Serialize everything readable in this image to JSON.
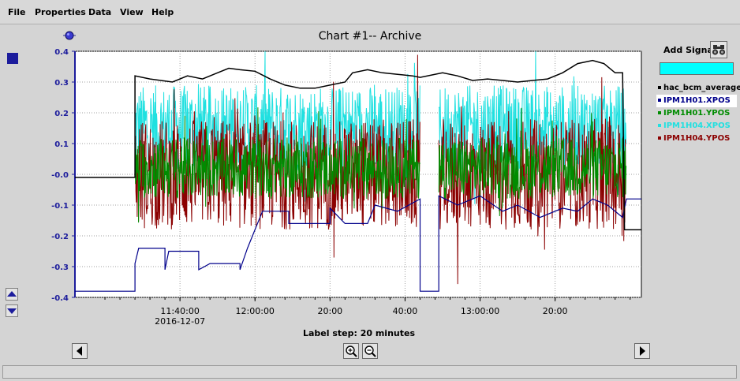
{
  "menu": [
    "File",
    "Properties",
    "Data",
    "View",
    "Help"
  ],
  "chart_title": "Chart #1-- Archive",
  "add_signal_label": "Add Signal",
  "signal_input_value": "",
  "label_step": "Label step: 20 minutes",
  "legend": [
    {
      "name": "hac_bcm_average",
      "color": "#000000"
    },
    {
      "name": "IPM1H01.XPOS",
      "color": "#00008b"
    },
    {
      "name": "IPM1H01.YPOS",
      "color": "#008c00"
    },
    {
      "name": "IPM1H04.XPOS",
      "color": "#20e0e0"
    },
    {
      "name": "IPM1H04.YPOS",
      "color": "#8b0000"
    }
  ],
  "selected_legend_index": 1,
  "icons": {
    "chart_menu": "ball-icon",
    "side_selector": "square-icon",
    "scroll_up": "triangle-up-icon",
    "scroll_down": "triangle-down-icon",
    "scroll_left": "triangle-left-icon",
    "scroll_right": "triangle-right-icon",
    "zoom_in": "zoom-in-icon",
    "zoom_out": "zoom-out-icon",
    "find": "binoculars-icon"
  },
  "chart_data": {
    "type": "line",
    "title": "Chart #1-- Archive",
    "xlabel": "",
    "ylabel": "",
    "ylim": [
      -0.4,
      0.4
    ],
    "y_ticks": [
      0.4,
      0.3,
      0.2,
      0.1,
      0.0,
      -0.1,
      -0.2,
      -0.3,
      -0.4
    ],
    "y_tick_labels": [
      "0.4",
      "0.3",
      "0.2",
      "0.1",
      "-0.0",
      "-0.1",
      "-0.2",
      "-0.3",
      "-0.4"
    ],
    "x_tick_labels": [
      {
        "line1": "11:40:00",
        "line2": "2016-12-07"
      },
      {
        "line1": "12:00:00",
        "line2": ""
      },
      {
        "line1": "20:00",
        "line2": ""
      },
      {
        "line1": "40:00",
        "line2": ""
      },
      {
        "line1": "13:00:00",
        "line2": ""
      },
      {
        "line1": "20:00",
        "line2": ""
      }
    ],
    "x_time": {
      "start_minute": 0,
      "end_minute": 143,
      "tick_minutes": [
        20,
        40,
        60,
        80,
        100,
        120
      ]
    },
    "grid": true,
    "legend_position": "right",
    "gaps": [
      [
        85,
        89
      ]
    ],
    "series": [
      {
        "name": "hac_bcm_average",
        "color": "#000000",
        "points": [
          [
            -8,
            -0.01
          ],
          [
            8,
            -0.01
          ],
          [
            8,
            0.32
          ],
          [
            12,
            0.31
          ],
          [
            18,
            0.3
          ],
          [
            22,
            0.32
          ],
          [
            26,
            0.31
          ],
          [
            30,
            0.33
          ],
          [
            33,
            0.345
          ],
          [
            36,
            0.34
          ],
          [
            40,
            0.335
          ],
          [
            44,
            0.31
          ],
          [
            48,
            0.29
          ],
          [
            52,
            0.28
          ],
          [
            56,
            0.28
          ],
          [
            60,
            0.29
          ],
          [
            64,
            0.3
          ],
          [
            66,
            0.33
          ],
          [
            70,
            0.34
          ],
          [
            74,
            0.33
          ],
          [
            78,
            0.325
          ],
          [
            82,
            0.32
          ],
          [
            84,
            0.315
          ],
          [
            90,
            0.33
          ],
          [
            94,
            0.32
          ],
          [
            98,
            0.305
          ],
          [
            102,
            0.31
          ],
          [
            106,
            0.305
          ],
          [
            110,
            0.3
          ],
          [
            114,
            0.305
          ],
          [
            118,
            0.31
          ],
          [
            122,
            0.33
          ],
          [
            126,
            0.36
          ],
          [
            130,
            0.37
          ],
          [
            133,
            0.36
          ],
          [
            136,
            0.33
          ],
          [
            138,
            0.33
          ],
          [
            138.5,
            -0.18
          ],
          [
            143,
            -0.18
          ]
        ]
      },
      {
        "name": "IPM1H01.XPOS",
        "color": "#00008b",
        "points": [
          [
            -8,
            -0.38
          ],
          [
            8,
            -0.38
          ],
          [
            8,
            -0.29
          ],
          [
            9,
            -0.24
          ],
          [
            16,
            -0.24
          ],
          [
            16,
            -0.31
          ],
          [
            17,
            -0.25
          ],
          [
            25,
            -0.25
          ],
          [
            25,
            -0.31
          ],
          [
            28,
            -0.29
          ],
          [
            36,
            -0.29
          ],
          [
            36,
            -0.31
          ],
          [
            38,
            -0.24
          ],
          [
            42,
            -0.12
          ],
          [
            49,
            -0.12
          ],
          [
            49,
            -0.16
          ],
          [
            60,
            -0.16
          ],
          [
            60,
            -0.11
          ],
          [
            64,
            -0.16
          ],
          [
            70,
            -0.16
          ],
          [
            72,
            -0.1
          ],
          [
            78,
            -0.12
          ],
          [
            84,
            -0.08
          ],
          [
            84,
            -0.38
          ],
          [
            89,
            -0.38
          ],
          [
            89,
            -0.07
          ],
          [
            94,
            -0.1
          ],
          [
            100,
            -0.07
          ],
          [
            106,
            -0.12
          ],
          [
            110,
            -0.1
          ],
          [
            116,
            -0.14
          ],
          [
            122,
            -0.11
          ],
          [
            126,
            -0.12
          ],
          [
            130,
            -0.08
          ],
          [
            134,
            -0.1
          ],
          [
            138,
            -0.14
          ],
          [
            139,
            -0.08
          ],
          [
            143,
            -0.08
          ]
        ]
      },
      {
        "name": "IPM1H01.YPOS",
        "color": "#008c00",
        "center": 0.02,
        "amplitude": 0.1,
        "segments": [
          [
            8,
            84
          ],
          [
            89,
            139
          ]
        ]
      },
      {
        "name": "IPM1H04.XPOS",
        "color": "#20e0e0",
        "center": 0.15,
        "amplitude": 0.14,
        "segments": [
          [
            8,
            84
          ],
          [
            89,
            139
          ]
        ]
      },
      {
        "name": "IPM1H04.YPOS",
        "color": "#8b0000",
        "center": 0.0,
        "amplitude": 0.18,
        "segments": [
          [
            8,
            84
          ],
          [
            89,
            139
          ]
        ]
      }
    ]
  }
}
